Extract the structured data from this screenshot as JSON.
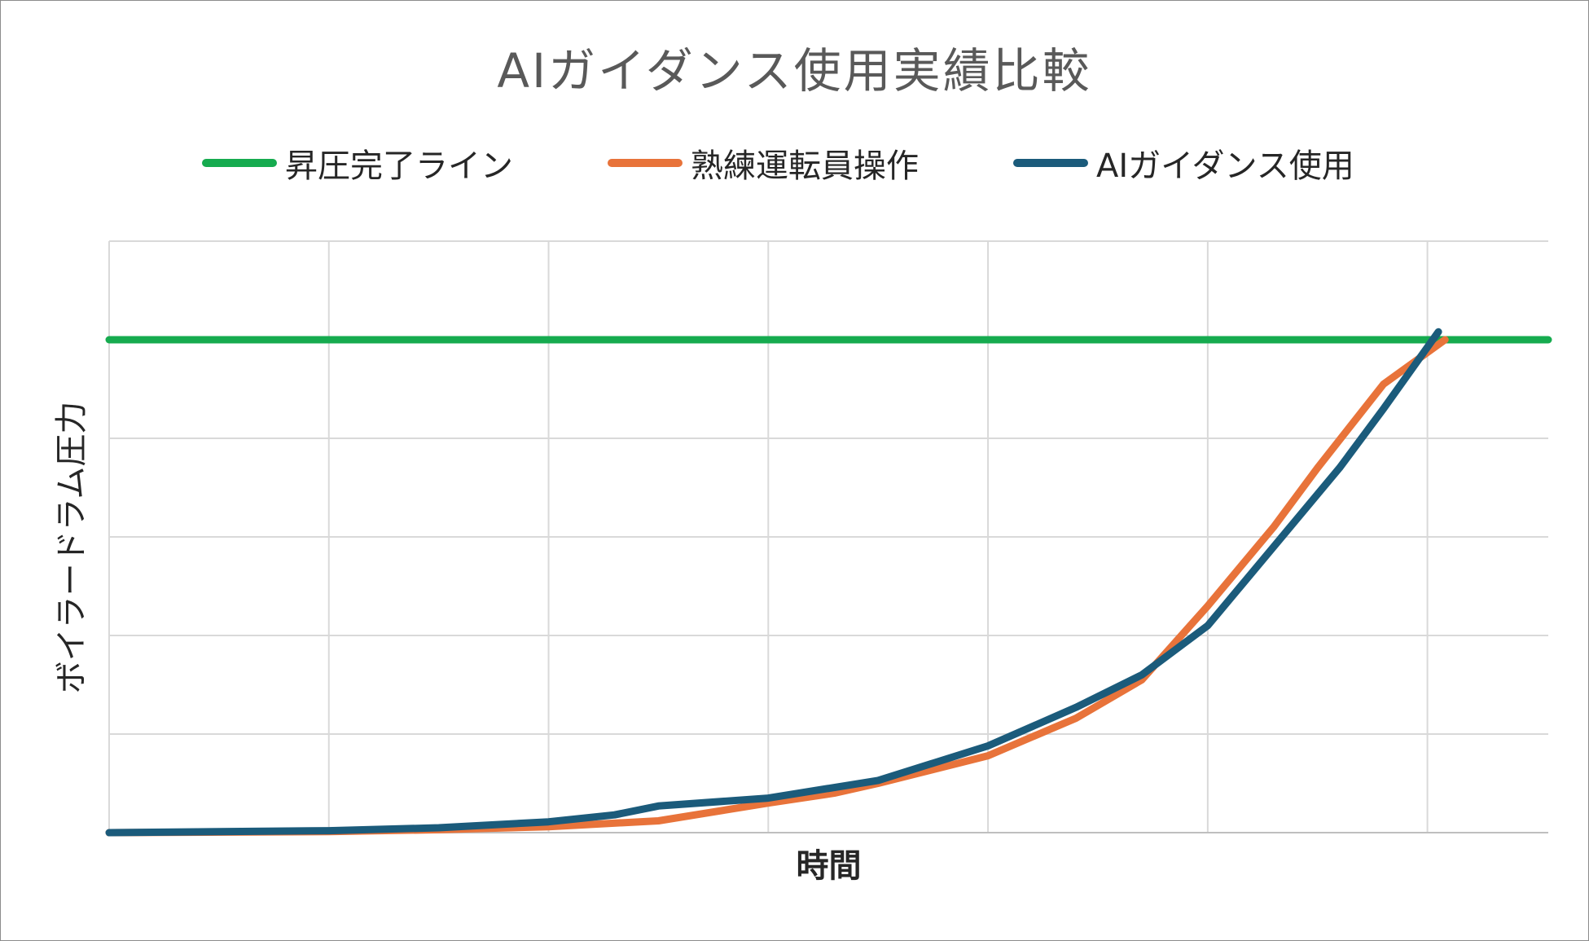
{
  "chart_data": {
    "type": "line",
    "title": "AIガイダンス使用実績比較",
    "xlabel": "時間",
    "ylabel": "ボイラードラム圧力",
    "xlim": [
      0,
      6.55
    ],
    "ylim": [
      0,
      6
    ],
    "x_gridlines": [
      0,
      1,
      2,
      3,
      4,
      5,
      6
    ],
    "y_gridlines": [
      0,
      1,
      2,
      3,
      4,
      5,
      6
    ],
    "tick_labels_shown": false,
    "grid": true,
    "legend": "top",
    "series": [
      {
        "name": "昇圧完了ライン",
        "color": "#16ab4f",
        "points": [
          [
            0,
            5.0
          ],
          [
            6.55,
            5.0
          ]
        ]
      },
      {
        "name": "熟練運転員操作",
        "color": "#e8733a",
        "points": [
          [
            0,
            0
          ],
          [
            1.0,
            0.01
          ],
          [
            1.5,
            0.03
          ],
          [
            2.0,
            0.06
          ],
          [
            2.5,
            0.12
          ],
          [
            3.0,
            0.3
          ],
          [
            3.3,
            0.4
          ],
          [
            3.5,
            0.5
          ],
          [
            4.0,
            0.78
          ],
          [
            4.4,
            1.16
          ],
          [
            4.7,
            1.55
          ],
          [
            5.0,
            2.3
          ],
          [
            5.3,
            3.1
          ],
          [
            5.5,
            3.7
          ],
          [
            5.8,
            4.55
          ],
          [
            6.08,
            5.0
          ]
        ]
      },
      {
        "name": "AIガイダンス使用",
        "color": "#1b5b7b",
        "points": [
          [
            0,
            0
          ],
          [
            1.0,
            0.02
          ],
          [
            1.5,
            0.05
          ],
          [
            2.0,
            0.11
          ],
          [
            2.3,
            0.18
          ],
          [
            2.5,
            0.27
          ],
          [
            3.0,
            0.35
          ],
          [
            3.5,
            0.53
          ],
          [
            4.0,
            0.88
          ],
          [
            4.4,
            1.27
          ],
          [
            4.7,
            1.6
          ],
          [
            5.0,
            2.1
          ],
          [
            5.3,
            2.9
          ],
          [
            5.6,
            3.7
          ],
          [
            5.8,
            4.3
          ],
          [
            6.05,
            5.08
          ]
        ]
      }
    ]
  }
}
